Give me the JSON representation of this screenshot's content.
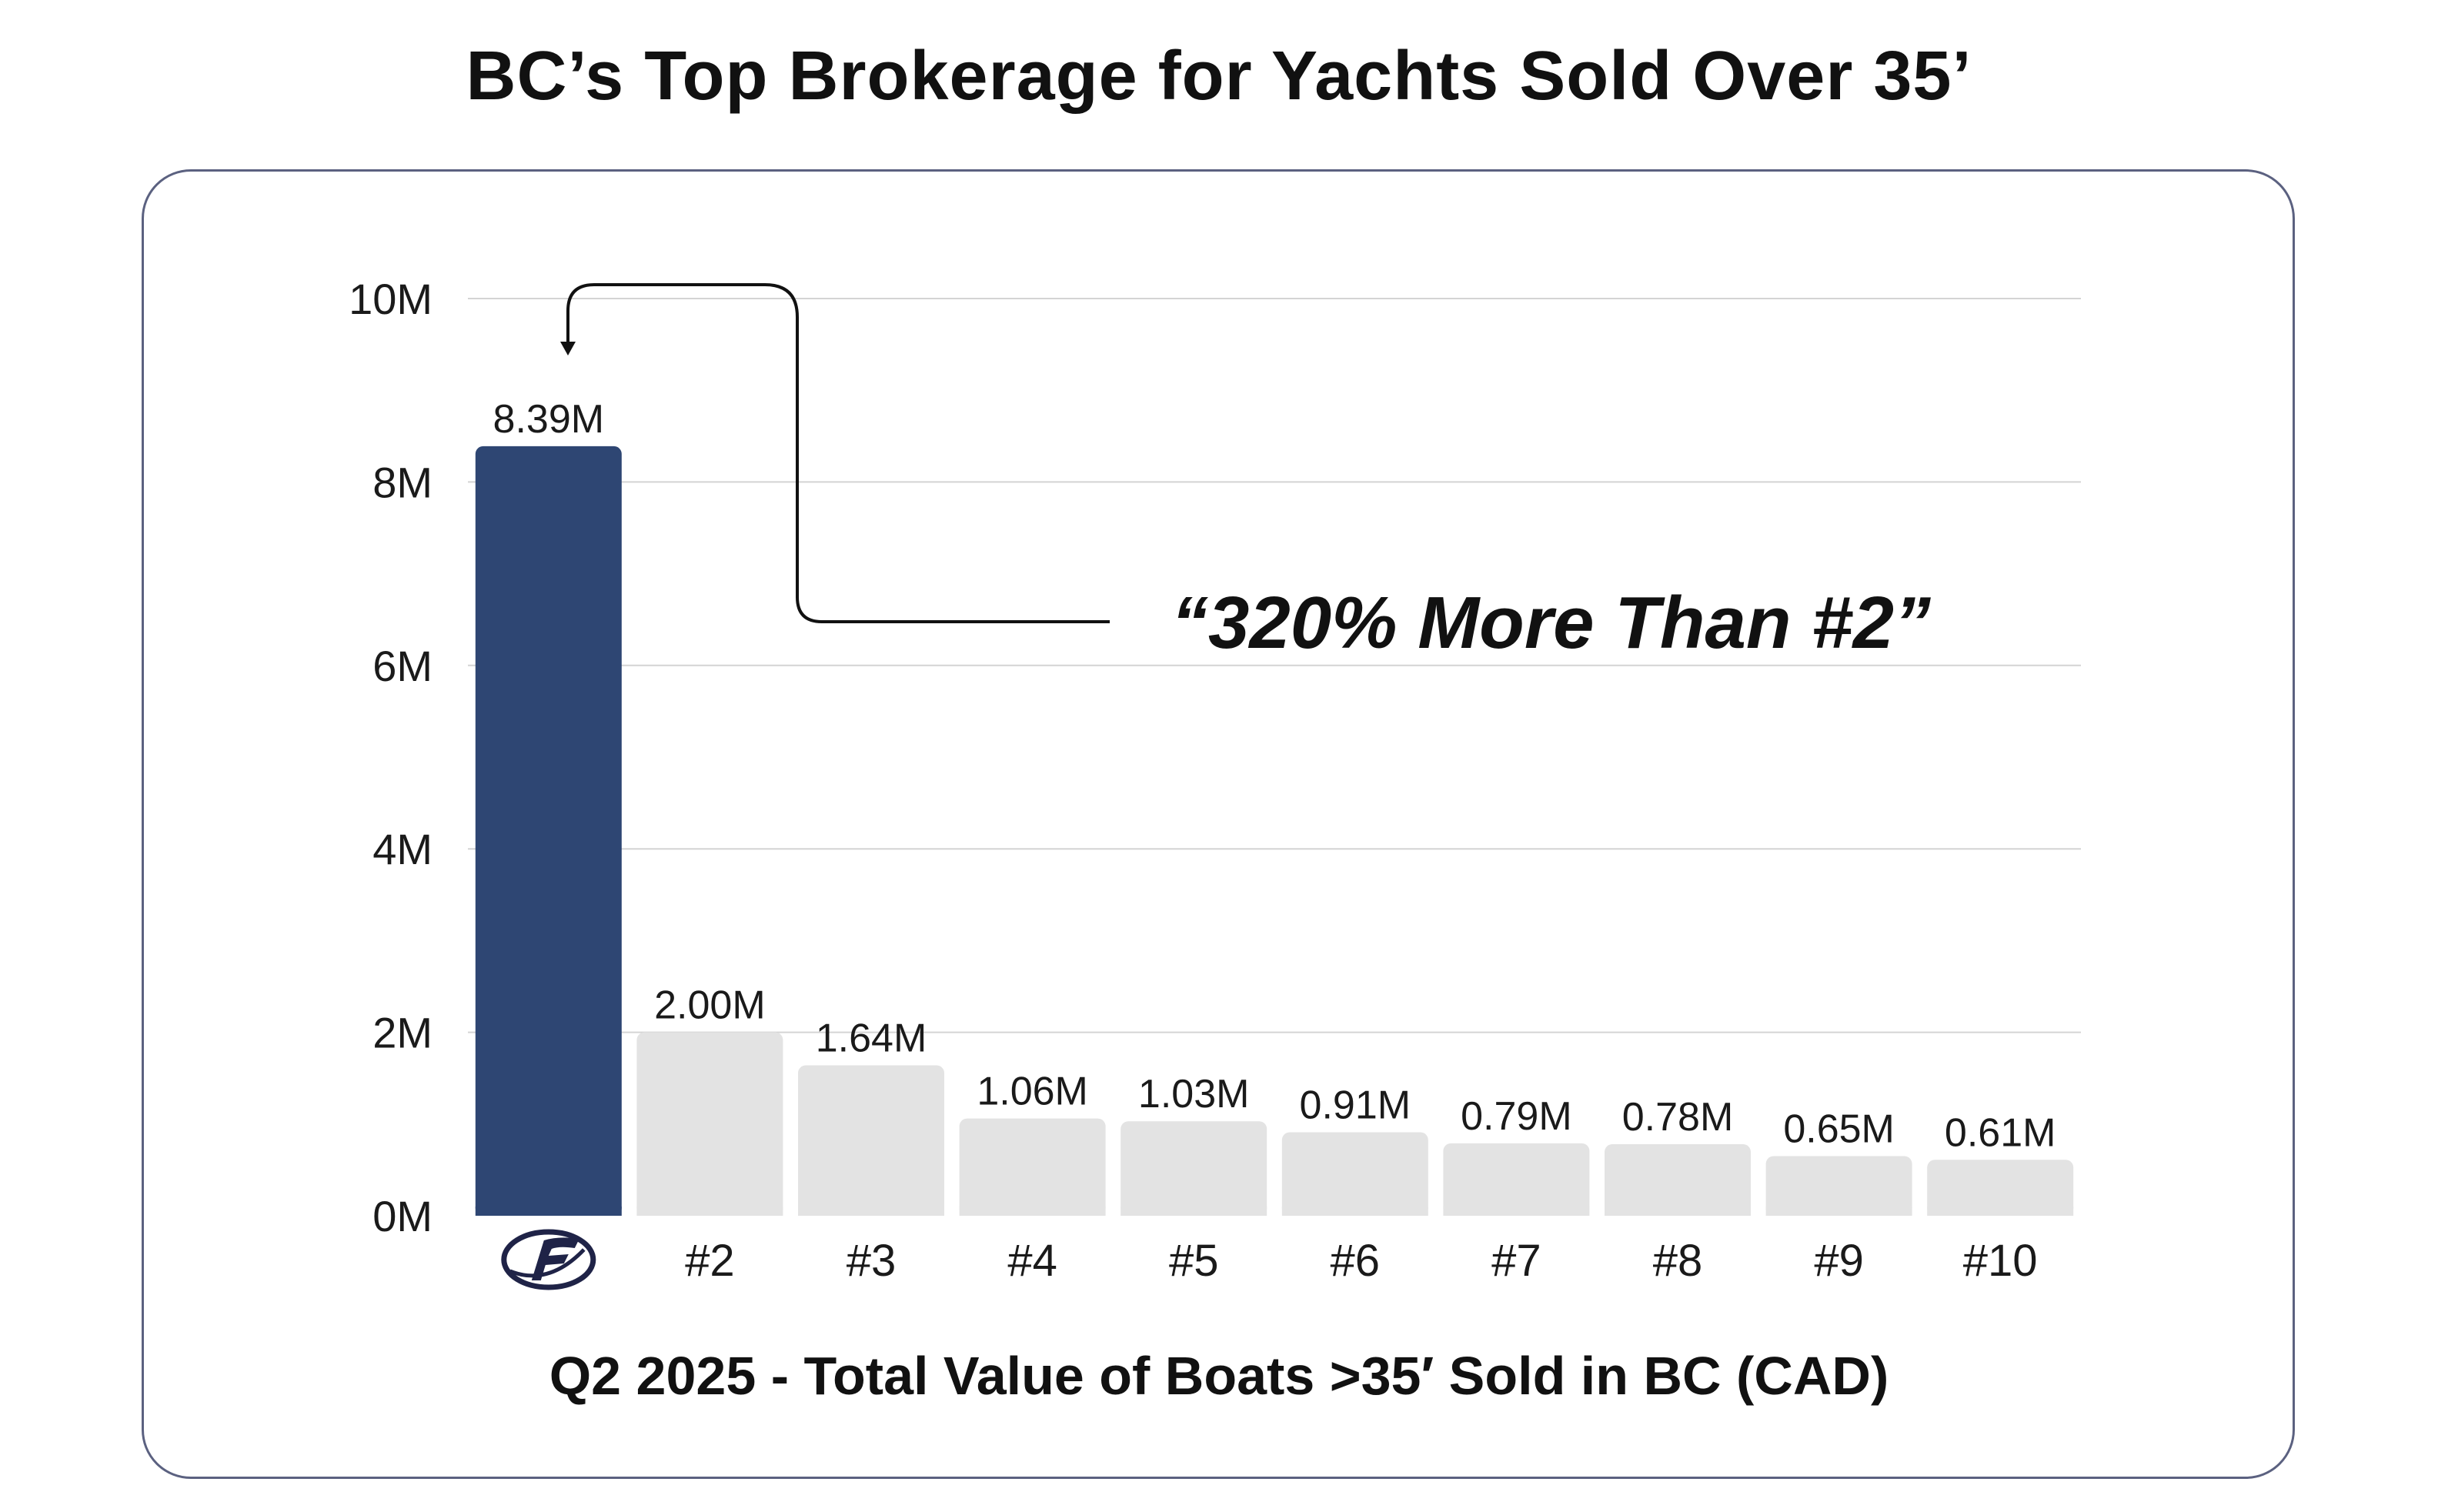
{
  "title": "BC’s Top Brokerage for Yachts Sold Over 35’",
  "subtitle": "Q2 2025 - Total Value of Boats >35′ Sold in BC (CAD)",
  "annotation": "“320% More Than #2”",
  "logo_icon": "brokerage-logo-icon",
  "colors": {
    "highlight_bar": "#2e4673",
    "other_bar": "#e3e3e3",
    "grid": "#d4d4d4",
    "text": "#111111",
    "logo": "#1f2347"
  },
  "chart_data": {
    "type": "bar",
    "title": "BC’s Top Brokerage for Yachts Sold Over 35’",
    "xlabel": "Q2 2025 - Total Value of Boats >35′ Sold in BC (CAD)",
    "ylabel": "",
    "ylim": [
      0,
      10
    ],
    "y_ticks": [
      0,
      2,
      4,
      6,
      8,
      10
    ],
    "y_tick_labels": [
      "0M",
      "2M",
      "4M",
      "6M",
      "8M",
      "10M"
    ],
    "grid": true,
    "categories": [
      "",
      "#2",
      "#3",
      "#4",
      "#5",
      "#6",
      "#7",
      "#8",
      "#9",
      "#10"
    ],
    "values": [
      8.39,
      2.0,
      1.64,
      1.06,
      1.03,
      0.91,
      0.79,
      0.78,
      0.65,
      0.61
    ],
    "value_labels": [
      "8.39M",
      "2.00M",
      "1.64M",
      "1.06M",
      "1.03M",
      "0.91M",
      "0.79M",
      "0.78M",
      "0.65M",
      "0.61M"
    ],
    "highlight_index": 0,
    "annotations": [
      "“320% More Than #2”"
    ]
  }
}
